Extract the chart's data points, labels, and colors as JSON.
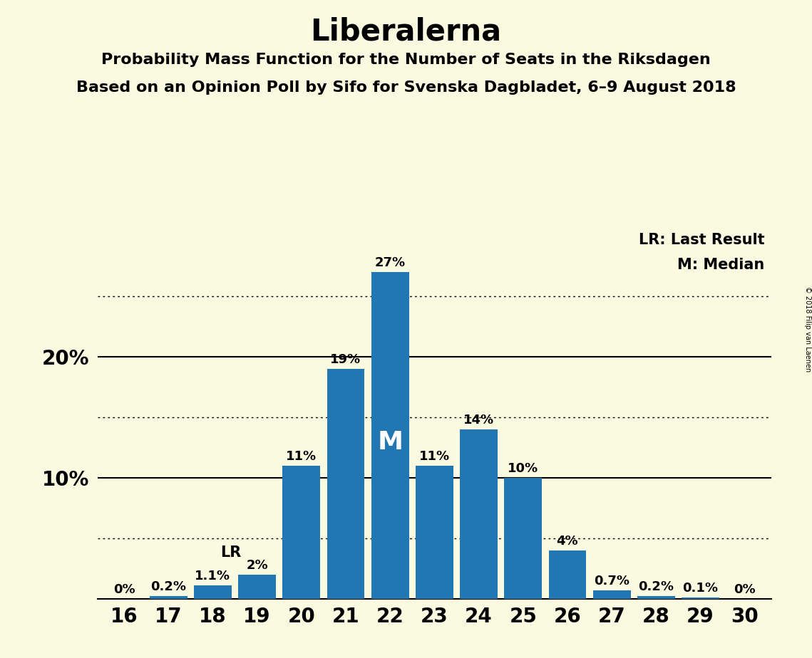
{
  "title": "Liberalerna",
  "subtitle1": "Probability Mass Function for the Number of Seats in the Riksdagen",
  "subtitle2": "Based on an Opinion Poll by Sifo for Svenska Dagbladet, 6–9 August 2018",
  "copyright": "© 2018 Filip van Laenen",
  "seats": [
    16,
    17,
    18,
    19,
    20,
    21,
    22,
    23,
    24,
    25,
    26,
    27,
    28,
    29,
    30
  ],
  "probabilities": [
    0.0,
    0.2,
    1.1,
    2.0,
    11.0,
    19.0,
    27.0,
    11.0,
    14.0,
    10.0,
    4.0,
    0.7,
    0.2,
    0.1,
    0.0
  ],
  "labels": [
    "0%",
    "0.2%",
    "1.1%",
    "2%",
    "11%",
    "19%",
    "27%",
    "11%",
    "14%",
    "10%",
    "4%",
    "0.7%",
    "0.2%",
    "0.1%",
    "0%"
  ],
  "bar_color": "#2077B4",
  "background_color": "#FAFAE0",
  "lr_seat": 19,
  "median_seat": 22,
  "solid_lines": [
    10,
    20
  ],
  "dotted_lines": [
    5,
    15,
    25
  ],
  "ytick_solid": [
    10,
    20
  ],
  "ytick_solid_labels": [
    "10%",
    "20%"
  ],
  "legend_lr": "LR: Last Result",
  "legend_m": "M: Median",
  "title_fontsize": 30,
  "subtitle_fontsize": 16,
  "bar_label_fontsize": 13,
  "axis_fontsize": 20
}
